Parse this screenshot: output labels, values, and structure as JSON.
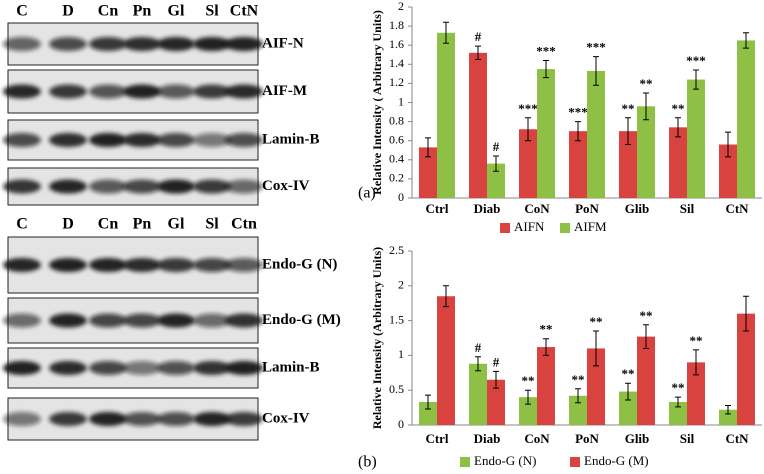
{
  "blots": [
    {
      "lanes": [
        "C",
        "D",
        "Cn",
        "Pn",
        "Gl",
        "Sl",
        "CtN"
      ],
      "labels": [
        "AIF-N",
        "AIF-M",
        "Lamin-B",
        "Cox-IV"
      ]
    },
    {
      "lanes": [
        "C",
        "D",
        "Cn",
        "Pn",
        "Gl",
        "Sl",
        "Ctn"
      ],
      "labels": [
        "Endo-G (N)",
        "Endo-G (M)",
        "Lamin-B",
        "Cox-IV"
      ]
    }
  ],
  "chart_data": [
    {
      "type": "bar",
      "panel": "(a)",
      "y_label": "Relative Intensity ( Arbitrary Units)",
      "categories": [
        "Ctrl",
        "Diab",
        "CoN",
        "PoN",
        "Glib",
        "Sil",
        "CtN"
      ],
      "series": [
        {
          "name": "AIFN",
          "color": "#d8423f",
          "values": [
            0.53,
            1.52,
            0.72,
            0.7,
            0.7,
            0.74,
            0.56
          ],
          "errors": [
            0.1,
            0.07,
            0.12,
            0.1,
            0.14,
            0.1,
            0.13
          ],
          "annotations": [
            null,
            "#",
            "***",
            "***",
            "**",
            "**",
            null
          ]
        },
        {
          "name": "AIFM",
          "color": "#8dc044",
          "values": [
            1.73,
            0.36,
            1.35,
            1.33,
            0.96,
            1.24,
            1.65
          ],
          "errors": [
            0.11,
            0.08,
            0.09,
            0.15,
            0.14,
            0.1,
            0.08
          ],
          "annotations": [
            null,
            "#",
            "***",
            "***",
            "**",
            "***",
            null
          ]
        }
      ],
      "ylim": [
        0,
        2
      ],
      "yticks": [
        0,
        0.2,
        0.4,
        0.6,
        0.8,
        1,
        1.2,
        1.4,
        1.6,
        1.8,
        2
      ]
    },
    {
      "type": "bar",
      "panel": "(b)",
      "y_label": "Relative Intensity (Arbitrary Units)",
      "categories": [
        "Ctrl",
        "Diab",
        "CoN",
        "PoN",
        "Glib",
        "Sil",
        "CtN"
      ],
      "series": [
        {
          "name": "Endo-G (N)",
          "color": "#8dc044",
          "values": [
            0.33,
            0.88,
            0.4,
            0.42,
            0.48,
            0.33,
            0.22
          ],
          "errors": [
            0.1,
            0.1,
            0.1,
            0.1,
            0.12,
            0.07,
            0.06
          ],
          "annotations": [
            null,
            "#",
            "**",
            "**",
            "**",
            "**",
            null
          ]
        },
        {
          "name": "Endo-G (M)",
          "color": "#d8423f",
          "values": [
            1.85,
            0.65,
            1.12,
            1.1,
            1.27,
            0.9,
            1.6
          ],
          "errors": [
            0.15,
            0.12,
            0.12,
            0.25,
            0.17,
            0.18,
            0.25
          ],
          "annotations": [
            null,
            "#",
            "**",
            "**",
            "**",
            "**",
            null
          ]
        }
      ],
      "ylim": [
        0,
        2.5
      ],
      "yticks": [
        0,
        0.5,
        1,
        1.5,
        2,
        2.5
      ]
    }
  ]
}
